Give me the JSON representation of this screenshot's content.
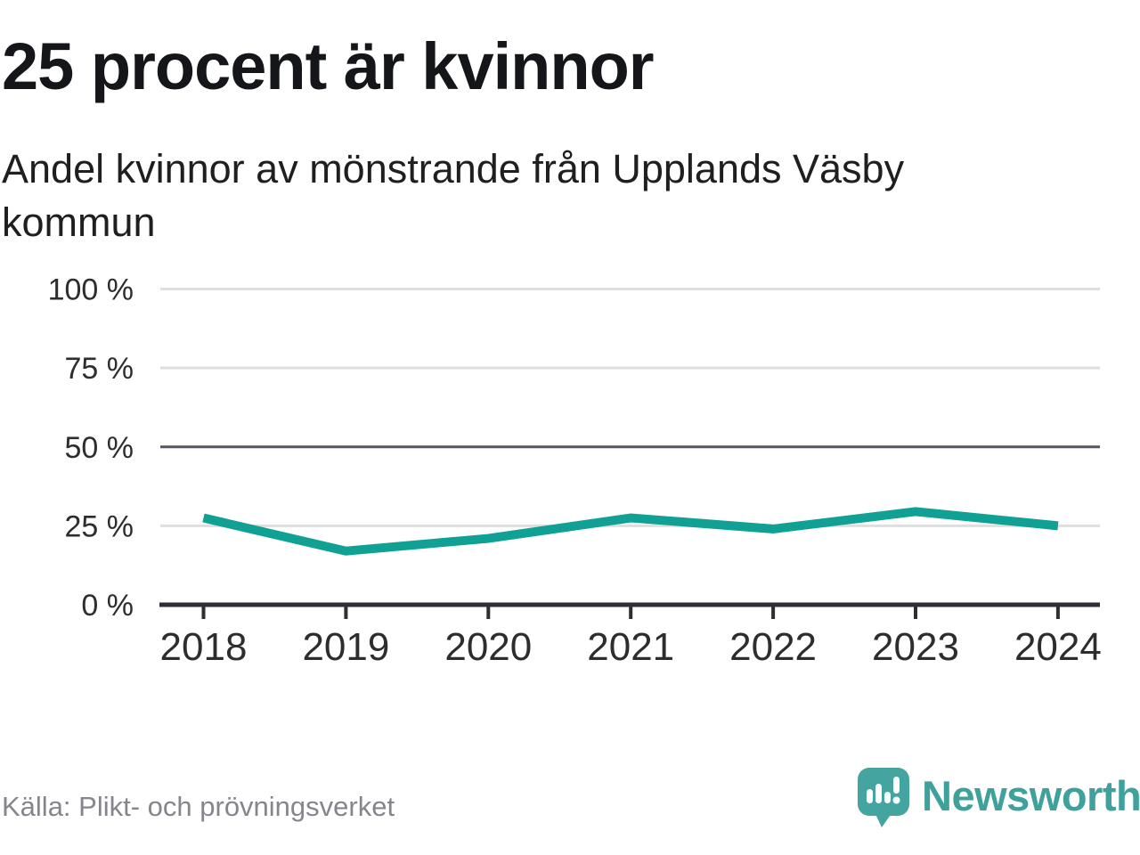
{
  "header": {
    "title": "25 procent är kvinnor",
    "subtitle": "Andel kvinnor av mönstrande från Upplands Väsby kommun"
  },
  "footer": {
    "source": "Källa: Plikt- och prövningsverket",
    "brand": "Newsworthy",
    "logo_icon": "newsworthy-speech-bubble-bars-icon"
  },
  "colors": {
    "line": "#10a194",
    "grid_light": "#dedede",
    "grid_mid": "#55555f",
    "axis": "#2e2e36",
    "tick_label": "#2d2d2d",
    "brand_teal": "#3ea19b",
    "brand_bubble": "#44a5a0",
    "source_text": "#85858d"
  },
  "chart_data": {
    "type": "line",
    "title": "25 procent är kvinnor",
    "subtitle": "Andel kvinnor av mönstrande från Upplands Väsby kommun",
    "x": [
      2018,
      2019,
      2020,
      2021,
      2022,
      2023,
      2024
    ],
    "series": [
      {
        "name": "Andel kvinnor av mönstrande, procent",
        "values": [
          27.5,
          17,
          21,
          27.5,
          24,
          29.5,
          25
        ]
      }
    ],
    "unit": "%",
    "ylim": [
      0,
      100
    ],
    "yticks": [
      0,
      25,
      50,
      75,
      100
    ],
    "ytick_labels": [
      "0 %",
      "25 %",
      "50 %",
      "75 %",
      "100 %"
    ],
    "xtick_labels": [
      "2018",
      "2019",
      "2020",
      "2021",
      "2022",
      "2023",
      "2024"
    ],
    "grid": true,
    "legend": false,
    "source": "Källa: Plikt- och prövningsverket"
  }
}
